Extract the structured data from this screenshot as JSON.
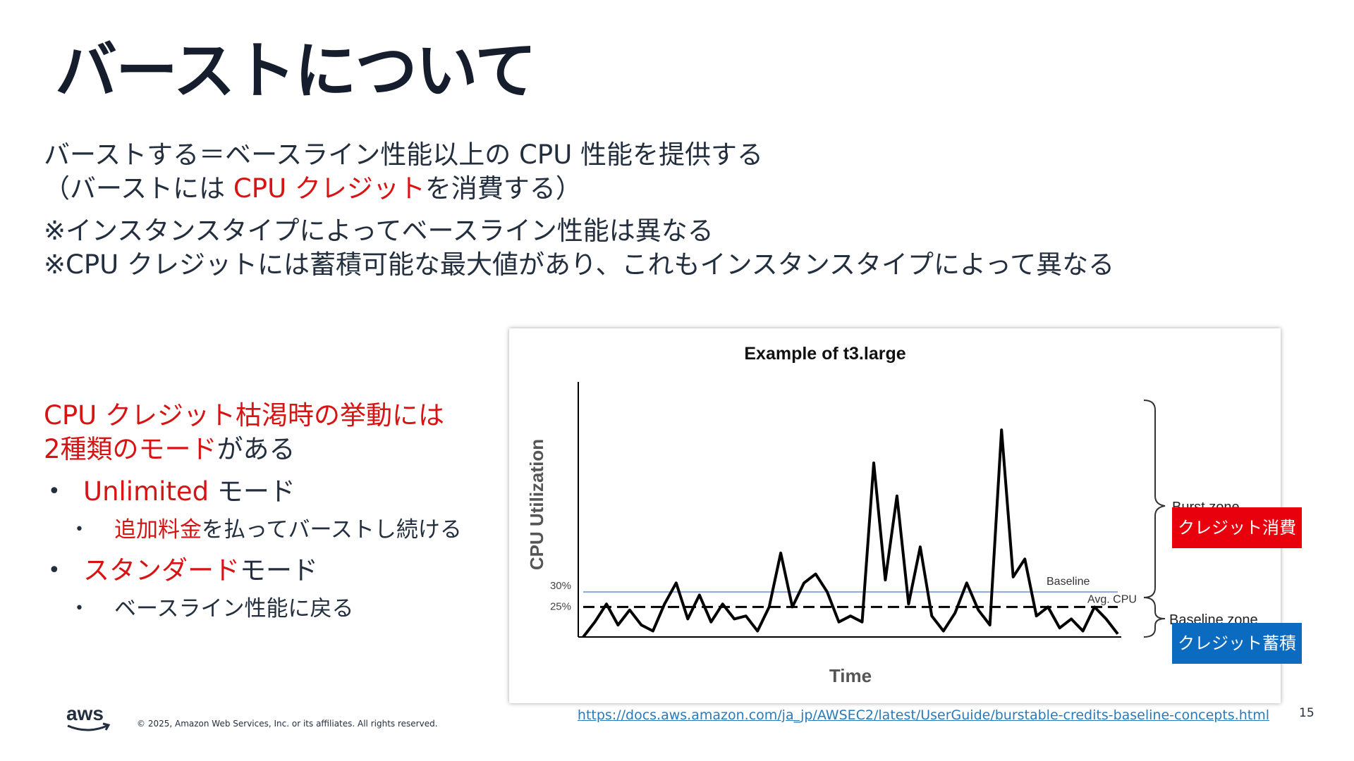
{
  "slide": {
    "title": "バーストについて",
    "intro": {
      "line1": "バーストする＝ベースライン性能以上の CPU 性能を提供する",
      "line2_pre": "（バーストには ",
      "line2_red": "CPU クレジット",
      "line2_post": "を消費する）",
      "note1": "※インスタンスタイプによってベースライン性能は異なる",
      "note2": "※CPU クレジットには蓄積可能な最大値があり、これもインスタンスタイプによって異なる"
    },
    "modes": {
      "heading_red_1": "CPU クレジット枯渇時の挙動には",
      "heading_red_2": "2種類のモード",
      "heading_post": "がある",
      "items": [
        {
          "name": "Unlimited",
          "suffix": " モード",
          "sub_red": "追加料金",
          "sub_post": "を払ってバーストし続ける"
        },
        {
          "name": "スタンダード",
          "suffix": "モード",
          "sub_red": "",
          "sub_post": "ベースライン性能に戻る"
        }
      ]
    },
    "tags": {
      "burst_consume": "クレジット消費",
      "baseline_accumulate": "クレジット蓄積"
    },
    "footer": {
      "logo_text": "aws",
      "copyright": "© 2025, Amazon Web Services, Inc. or its affiliates. All rights reserved.",
      "link": "https://docs.aws.amazon.com/ja_jp/AWSEC2/latest/UserGuide/burstable-credits-baseline-concepts.html",
      "page_number": "15"
    }
  },
  "chart_data": {
    "type": "line",
    "title": "Example of t3.large",
    "xlabel": "Time",
    "ylabel": "CPU Utilization",
    "y_ticks": [
      "30%",
      "25%"
    ],
    "baseline": {
      "label": "Baseline",
      "value": 30,
      "color": "#8aa8d8"
    },
    "avg": {
      "label": "Avg. CPU",
      "value": 25
    },
    "zones": [
      {
        "label": "Burst zone"
      },
      {
        "label": "Baseline zone"
      }
    ],
    "ylim": [
      15,
      100
    ],
    "series": [
      {
        "color": "#000000",
        "values": [
          15,
          20,
          26,
          19,
          24,
          19,
          17,
          26,
          33,
          21,
          29,
          20,
          26,
          21,
          22,
          17,
          25,
          43,
          25,
          33,
          36,
          30,
          20,
          22,
          20,
          73,
          34,
          62,
          26,
          45,
          22,
          17,
          23,
          33,
          24,
          19,
          84,
          35,
          41,
          22,
          25,
          18,
          21,
          17,
          25,
          21,
          16
        ]
      }
    ]
  }
}
